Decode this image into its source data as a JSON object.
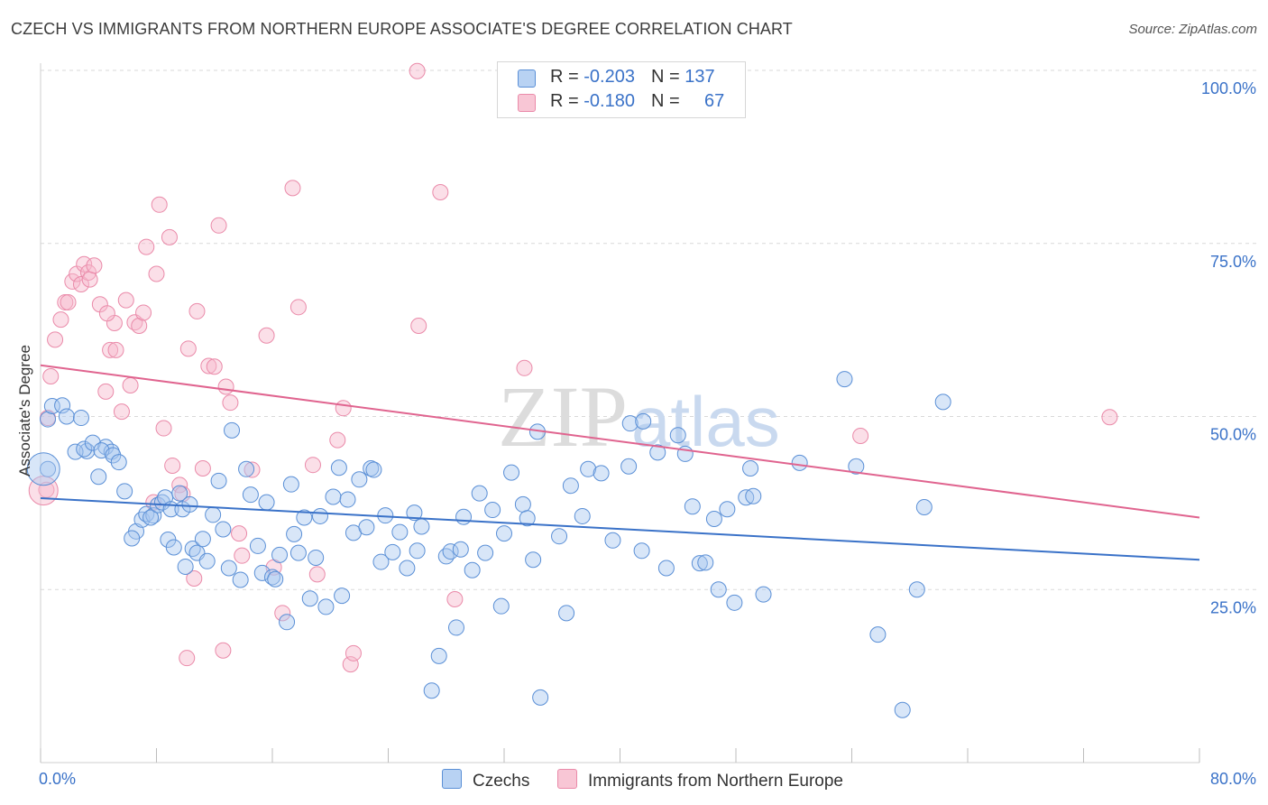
{
  "title": "CZECH VS IMMIGRANTS FROM NORTHERN EUROPE ASSOCIATE'S DEGREE CORRELATION CHART",
  "source": "Source: ZipAtlas.com",
  "watermark": {
    "zip": "ZIP",
    "atlas": "atlas"
  },
  "colors": {
    "blue": "#3a72c8",
    "blue_fill": "#a9c7ef",
    "blue_stroke": "#5a8fd6",
    "pink": "#e0648f",
    "pink_fill": "#f6b9cc",
    "pink_stroke": "#ea8aa9",
    "grid": "#d9d9d9",
    "tick_label": "#3a72c8"
  },
  "legend": {
    "rows": [
      {
        "r_label": "R = ",
        "r_value": "-0.203",
        "n_label": "N = ",
        "n_value": "137"
      },
      {
        "r_label": "R = ",
        "r_value": "-0.180",
        "n_label": "N = ",
        "n_value": "67"
      }
    ]
  },
  "bottom_legend": [
    "Czechs",
    "Immigrants from Northern Europe"
  ],
  "chart_data": {
    "type": "scatter",
    "title": "CZECH VS IMMIGRANTS FROM NORTHERN EUROPE ASSOCIATE'S DEGREE CORRELATION CHART",
    "xlabel": "",
    "ylabel": "Associate's Degree",
    "xlim": [
      0,
      80
    ],
    "ylim": [
      0,
      100
    ],
    "x_tick_labels": [
      "0.0%",
      "80.0%"
    ],
    "y_ticks": [
      25,
      50,
      75,
      100
    ],
    "y_tick_labels": [
      "25.0%",
      "50.0%",
      "75.0%",
      "100.0%"
    ],
    "grid": true,
    "series": [
      {
        "name": "Czechs",
        "trend": {
          "x0": 0,
          "y0": 38.2,
          "x1": 80,
          "y1": 29.3
        },
        "points": [
          [
            0.5,
            42.4
          ],
          [
            0.5,
            49.6
          ],
          [
            0.8,
            51.5
          ],
          [
            1.5,
            51.6
          ],
          [
            1.8,
            50.0
          ],
          [
            2.8,
            49.8
          ],
          [
            3.2,
            45.0
          ],
          [
            2.4,
            44.9
          ],
          [
            3.0,
            45.3
          ],
          [
            3.6,
            46.2
          ],
          [
            4.5,
            45.6
          ],
          [
            4.9,
            44.9
          ],
          [
            4.2,
            45.1
          ],
          [
            5.0,
            44.4
          ],
          [
            5.4,
            43.4
          ],
          [
            4.0,
            41.3
          ],
          [
            5.8,
            39.2
          ],
          [
            6.6,
            33.4
          ],
          [
            6.3,
            32.4
          ],
          [
            7.0,
            35.1
          ],
          [
            7.3,
            35.9
          ],
          [
            7.8,
            35.7
          ],
          [
            7.6,
            35.4
          ],
          [
            8.1,
            37.2
          ],
          [
            8.4,
            37.6
          ],
          [
            8.6,
            38.3
          ],
          [
            9.0,
            36.6
          ],
          [
            8.8,
            32.2
          ],
          [
            9.2,
            31.1
          ],
          [
            9.6,
            38.9
          ],
          [
            9.8,
            36.6
          ],
          [
            10.3,
            37.3
          ],
          [
            10.0,
            28.3
          ],
          [
            10.5,
            30.9
          ],
          [
            10.8,
            30.3
          ],
          [
            11.2,
            32.3
          ],
          [
            11.5,
            29.1
          ],
          [
            11.9,
            35.8
          ],
          [
            12.3,
            40.7
          ],
          [
            12.6,
            33.7
          ],
          [
            13.0,
            28.1
          ],
          [
            13.2,
            48.0
          ],
          [
            13.8,
            26.4
          ],
          [
            14.2,
            42.4
          ],
          [
            14.5,
            38.7
          ],
          [
            15.0,
            31.3
          ],
          [
            15.3,
            27.4
          ],
          [
            15.6,
            37.6
          ],
          [
            16.0,
            26.8
          ],
          [
            16.2,
            26.5
          ],
          [
            16.5,
            30.0
          ],
          [
            17.0,
            20.3
          ],
          [
            17.3,
            40.2
          ],
          [
            17.5,
            33.0
          ],
          [
            17.8,
            30.3
          ],
          [
            18.2,
            35.4
          ],
          [
            18.6,
            23.7
          ],
          [
            19.0,
            29.6
          ],
          [
            19.3,
            35.6
          ],
          [
            19.7,
            22.5
          ],
          [
            20.2,
            38.4
          ],
          [
            20.6,
            42.6
          ],
          [
            20.8,
            24.1
          ],
          [
            21.2,
            38.0
          ],
          [
            21.6,
            33.2
          ],
          [
            22.0,
            40.9
          ],
          [
            22.5,
            34.0
          ],
          [
            22.8,
            42.5
          ],
          [
            23.0,
            42.3
          ],
          [
            23.5,
            29.0
          ],
          [
            23.8,
            35.7
          ],
          [
            24.3,
            30.4
          ],
          [
            24.8,
            33.3
          ],
          [
            25.3,
            28.1
          ],
          [
            25.8,
            36.1
          ],
          [
            26.0,
            30.6
          ],
          [
            26.3,
            34.1
          ],
          [
            27.0,
            10.4
          ],
          [
            27.5,
            15.4
          ],
          [
            28.0,
            29.8
          ],
          [
            28.3,
            30.5
          ],
          [
            28.7,
            19.5
          ],
          [
            29.0,
            30.8
          ],
          [
            29.2,
            35.5
          ],
          [
            29.8,
            27.8
          ],
          [
            30.3,
            38.9
          ],
          [
            30.7,
            30.3
          ],
          [
            31.2,
            36.5
          ],
          [
            31.8,
            22.6
          ],
          [
            32.0,
            33.1
          ],
          [
            32.5,
            41.9
          ],
          [
            33.3,
            37.3
          ],
          [
            33.6,
            35.3
          ],
          [
            34.0,
            29.3
          ],
          [
            34.5,
            9.4
          ],
          [
            34.3,
            47.8
          ],
          [
            35.8,
            32.7
          ],
          [
            36.3,
            21.6
          ],
          [
            36.6,
            40.0
          ],
          [
            37.4,
            35.6
          ],
          [
            37.8,
            42.4
          ],
          [
            38.7,
            41.8
          ],
          [
            39.5,
            32.1
          ],
          [
            40.6,
            42.8
          ],
          [
            41.5,
            30.6
          ],
          [
            40.7,
            49.0
          ],
          [
            41.6,
            49.3
          ],
          [
            42.6,
            44.8
          ],
          [
            43.2,
            28.1
          ],
          [
            44.0,
            47.3
          ],
          [
            44.5,
            44.6
          ],
          [
            45.5,
            28.8
          ],
          [
            45.9,
            28.9
          ],
          [
            45.0,
            37.0
          ],
          [
            46.5,
            35.2
          ],
          [
            46.8,
            25.0
          ],
          [
            47.4,
            36.6
          ],
          [
            47.9,
            23.1
          ],
          [
            48.7,
            38.3
          ],
          [
            49.0,
            42.5
          ],
          [
            49.2,
            38.5
          ],
          [
            49.9,
            24.3
          ],
          [
            52.4,
            43.3
          ],
          [
            55.5,
            55.4
          ],
          [
            56.3,
            42.8
          ],
          [
            57.8,
            18.5
          ],
          [
            59.5,
            7.6
          ],
          [
            60.5,
            25.0
          ],
          [
            61.0,
            36.9
          ],
          [
            62.3,
            52.1
          ]
        ]
      },
      {
        "name": "Immigrants from Northern Europe",
        "trend": {
          "x0": 0,
          "y0": 57.4,
          "x1": 80,
          "y1": 35.4
        },
        "points": [
          [
            0.4,
            39.4
          ],
          [
            0.5,
            49.8
          ],
          [
            0.7,
            55.8
          ],
          [
            1.0,
            61.1
          ],
          [
            1.4,
            64.0
          ],
          [
            1.7,
            66.5
          ],
          [
            1.9,
            66.5
          ],
          [
            2.2,
            69.5
          ],
          [
            2.5,
            70.6
          ],
          [
            2.8,
            69.1
          ],
          [
            3.0,
            72.0
          ],
          [
            3.3,
            70.8
          ],
          [
            3.4,
            69.8
          ],
          [
            3.7,
            71.8
          ],
          [
            4.1,
            66.2
          ],
          [
            4.5,
            53.6
          ],
          [
            4.8,
            59.6
          ],
          [
            5.1,
            63.5
          ],
          [
            5.2,
            59.6
          ],
          [
            5.6,
            50.7
          ],
          [
            5.9,
            66.8
          ],
          [
            6.2,
            54.5
          ],
          [
            6.5,
            63.6
          ],
          [
            6.8,
            63.1
          ],
          [
            7.1,
            65.0
          ],
          [
            7.3,
            74.5
          ],
          [
            7.8,
            37.6
          ],
          [
            8.0,
            70.6
          ],
          [
            8.2,
            80.6
          ],
          [
            8.5,
            48.3
          ],
          [
            8.9,
            75.9
          ],
          [
            9.1,
            42.9
          ],
          [
            9.6,
            40.1
          ],
          [
            9.8,
            38.8
          ],
          [
            10.1,
            15.1
          ],
          [
            10.2,
            59.8
          ],
          [
            10.6,
            26.6
          ],
          [
            10.8,
            65.2
          ],
          [
            11.2,
            42.5
          ],
          [
            11.6,
            57.3
          ],
          [
            12.0,
            57.2
          ],
          [
            12.3,
            77.6
          ],
          [
            12.6,
            16.2
          ],
          [
            12.8,
            54.3
          ],
          [
            13.1,
            52.0
          ],
          [
            13.7,
            33.1
          ],
          [
            13.9,
            29.9
          ],
          [
            14.6,
            42.3
          ],
          [
            15.6,
            61.7
          ],
          [
            16.1,
            28.2
          ],
          [
            16.7,
            21.6
          ],
          [
            17.4,
            83.0
          ],
          [
            17.8,
            65.8
          ],
          [
            18.8,
            43.0
          ],
          [
            19.1,
            27.2
          ],
          [
            20.5,
            46.6
          ],
          [
            20.9,
            51.2
          ],
          [
            21.4,
            14.2
          ],
          [
            21.6,
            15.8
          ],
          [
            26.0,
            99.9
          ],
          [
            26.1,
            63.1
          ],
          [
            27.6,
            82.4
          ],
          [
            28.6,
            23.6
          ],
          [
            33.4,
            57.0
          ],
          [
            56.6,
            47.2
          ],
          [
            73.8,
            49.9
          ],
          [
            4.6,
            64.9
          ]
        ]
      }
    ]
  }
}
